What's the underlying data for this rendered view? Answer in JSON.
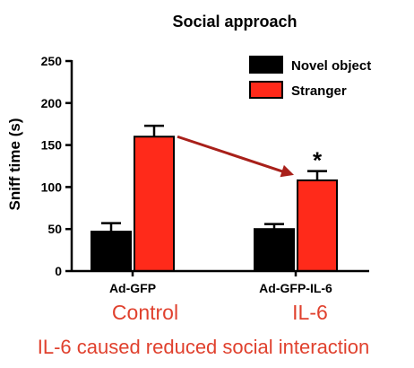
{
  "chart_data": {
    "type": "bar",
    "title": "Social approach",
    "ylabel": "Sniff time (s)",
    "xlabel": "",
    "ylim": [
      0,
      250
    ],
    "yticks": [
      0,
      50,
      100,
      150,
      200,
      250
    ],
    "categories": [
      "Ad-GFP",
      "Ad-GFP-IL-6"
    ],
    "series": [
      {
        "name": "Novel object",
        "color": "#000000",
        "values": [
          47,
          50
        ],
        "errors": [
          10,
          6
        ]
      },
      {
        "name": "Stranger",
        "color": "#ff2a1a",
        "values": [
          160,
          108
        ],
        "errors": [
          13,
          11
        ]
      }
    ],
    "significance": {
      "symbol": "*",
      "category_index": 1,
      "series_index": 1
    },
    "legend_position": "top-right",
    "grid": false
  },
  "annotations": {
    "group_labels": [
      "Control",
      "IL-6"
    ],
    "caption": "IL-6 caused reduced social interaction",
    "arrow_color": "#a8201a",
    "text_color": "#e0412e"
  }
}
